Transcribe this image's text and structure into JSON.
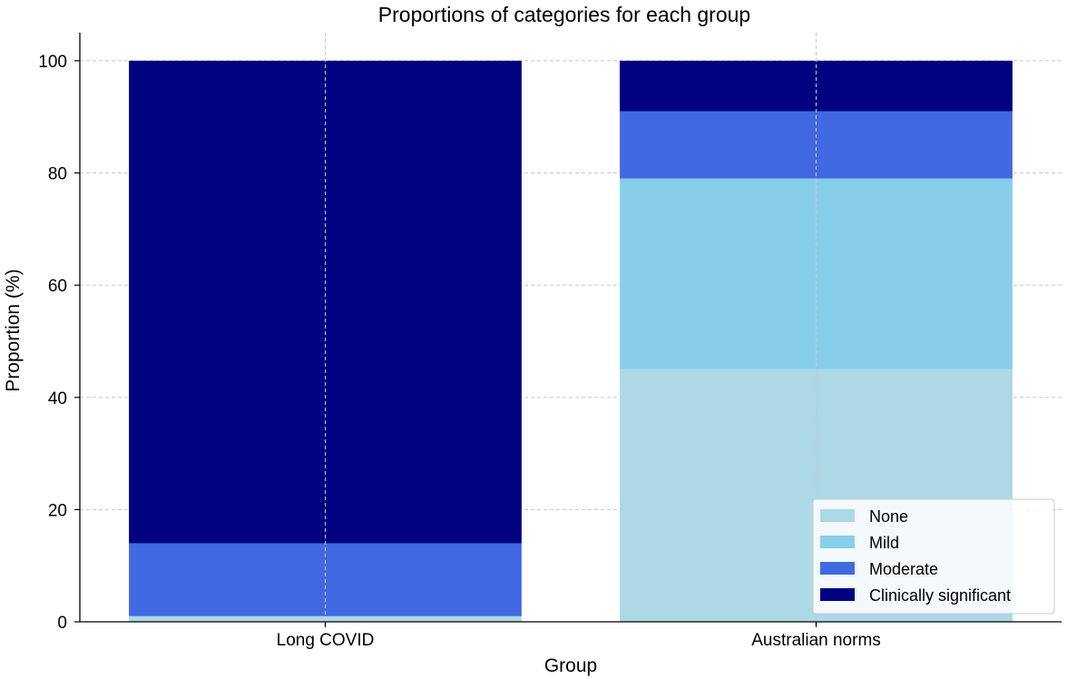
{
  "chart_data": {
    "type": "bar",
    "stacked": true,
    "title": "Proportions of categories for each group",
    "xlabel": "Group",
    "ylabel": "Proportion (%)",
    "ylim": [
      0,
      105
    ],
    "yticks": [
      0,
      20,
      40,
      60,
      80,
      100
    ],
    "grid": true,
    "legend_position": "bottom-right",
    "categories": [
      "Long COVID",
      "Australian norms"
    ],
    "series": [
      {
        "name": "None",
        "color": "#add8e6",
        "values": [
          1,
          45
        ]
      },
      {
        "name": "Mild",
        "color": "#87ceeb",
        "values": [
          0,
          34
        ]
      },
      {
        "name": "Moderate",
        "color": "#4169e1",
        "values": [
          13,
          12
        ]
      },
      {
        "name": "Clinically significant",
        "color": "#000080",
        "values": [
          86,
          9
        ]
      }
    ]
  }
}
